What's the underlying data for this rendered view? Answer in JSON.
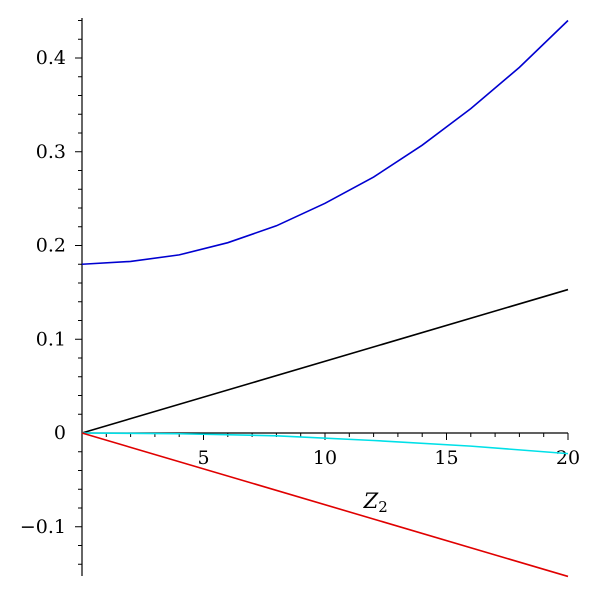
{
  "chart_data": {
    "type": "line",
    "xlim": [
      0,
      20
    ],
    "ylim": [
      -0.15,
      0.44
    ],
    "xlabel": {
      "main": "Z",
      "sub": "2"
    },
    "ylabel": "",
    "x_ticks": [
      {
        "value": 5,
        "label": "5"
      },
      {
        "value": 10,
        "label": "10"
      },
      {
        "value": 15,
        "label": "15"
      },
      {
        "value": 20,
        "label": "20"
      }
    ],
    "y_ticks": [
      {
        "value": -0.1,
        "label": "−0.1"
      },
      {
        "value": 0,
        "label": "0"
      },
      {
        "value": 0.1,
        "label": "0.1"
      },
      {
        "value": 0.2,
        "label": "0.2"
      },
      {
        "value": 0.3,
        "label": "0.3"
      },
      {
        "value": 0.4,
        "label": "0.4"
      }
    ],
    "x_minor_step": 1,
    "y_minor_step": 0.02,
    "grid": false,
    "legend": "none",
    "series": [
      {
        "color": "#0000d0",
        "x": [
          0,
          2,
          4,
          6,
          8,
          10,
          12,
          14,
          16,
          18,
          20
        ],
        "y": [
          0.18,
          0.183,
          0.19,
          0.203,
          0.221,
          0.245,
          0.273,
          0.307,
          0.346,
          0.39,
          0.44
        ]
      },
      {
        "color": "#000000",
        "x": [
          0,
          20
        ],
        "y": [
          0,
          0.153
        ]
      },
      {
        "color": "#00e0e8",
        "x": [
          0,
          4,
          8,
          12,
          16,
          20
        ],
        "y": [
          0,
          -0.0008,
          -0.003,
          -0.008,
          -0.014,
          -0.022
        ]
      },
      {
        "color": "#e00000",
        "x": [
          0,
          20
        ],
        "y": [
          0,
          -0.153
        ]
      }
    ]
  }
}
